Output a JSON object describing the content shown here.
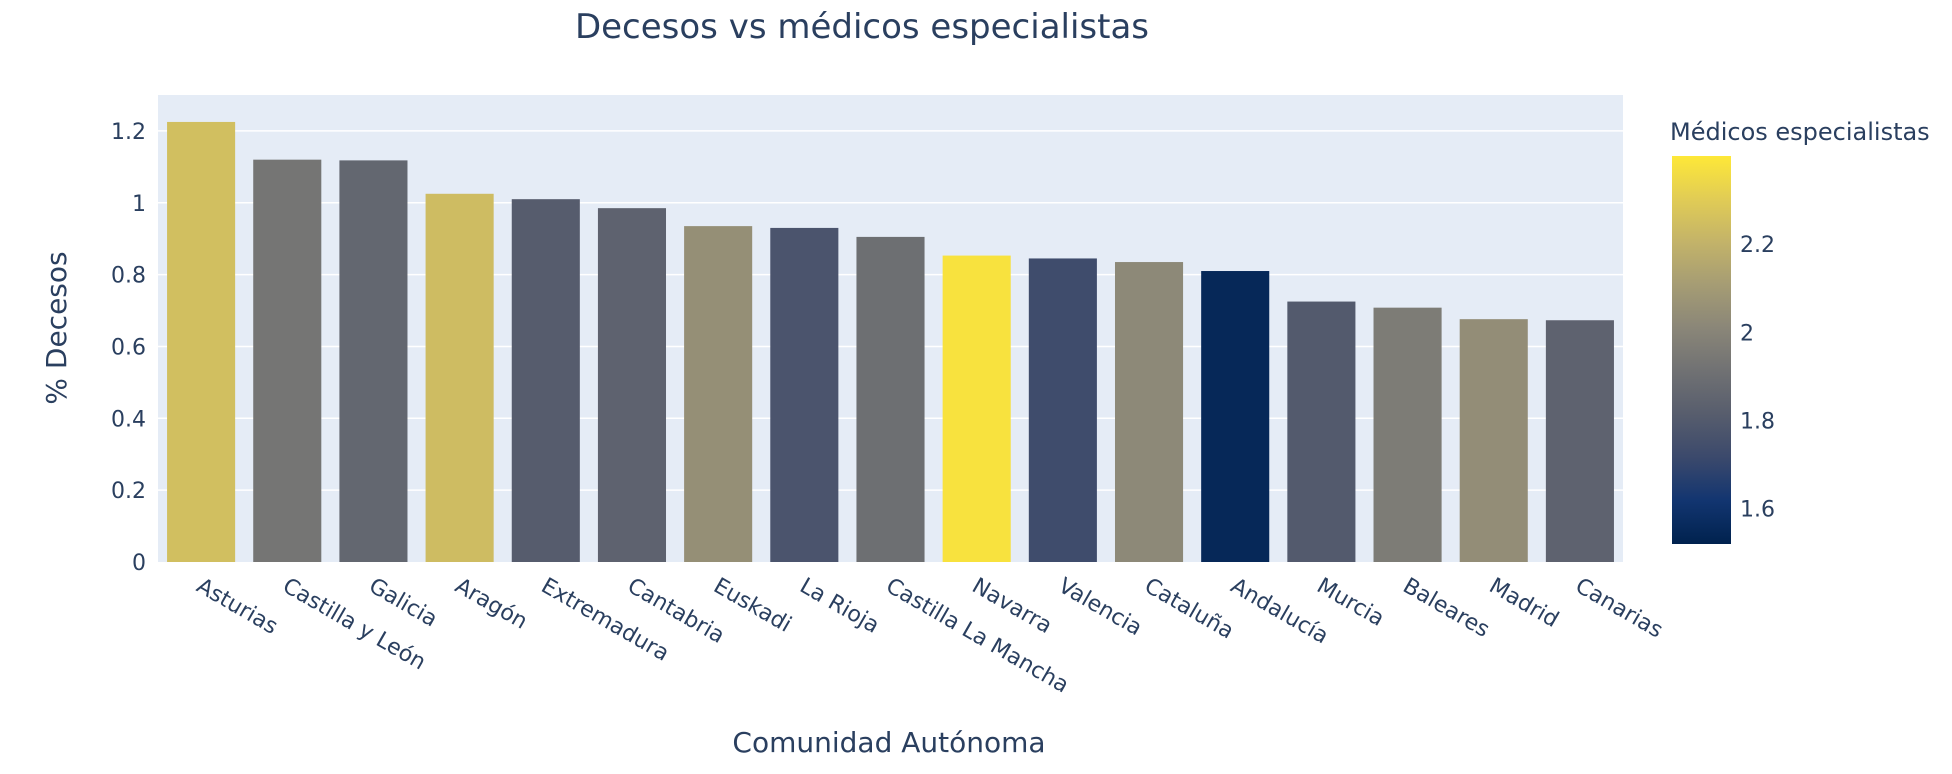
{
  "chart_data": {
    "type": "bar",
    "title": "Decesos vs médicos especialistas",
    "xlabel": "Comunidad Autónoma",
    "ylabel": "% Decesos",
    "ylim": [
      0,
      1.3
    ],
    "yticks": [
      "0",
      "0.2",
      "0.4",
      "0.6",
      "0.8",
      "1",
      "1.2"
    ],
    "grid": true,
    "categories": [
      "Asturias",
      "Castilla y León",
      "Galicia",
      "Aragón",
      "Extremadura",
      "Cantabria",
      "Euskadi",
      "La Rioja",
      "Castilla La Mancha",
      "Navarra",
      "Valencia",
      "Cataluña",
      "Andalucía",
      "Murcia",
      "Baleares",
      "Madrid",
      "Canarias"
    ],
    "values": [
      1.225,
      1.12,
      1.118,
      1.025,
      1.01,
      0.985,
      0.935,
      0.93,
      0.905,
      0.853,
      0.845,
      0.835,
      0.81,
      0.725,
      0.708,
      0.676,
      0.673
    ],
    "color_values": [
      2.25,
      1.93,
      1.86,
      2.24,
      1.81,
      1.84,
      2.05,
      1.77,
      1.9,
      2.38,
      1.73,
      2.02,
      1.55,
      1.8,
      1.96,
      2.04,
      1.84
    ],
    "colorbar": {
      "title": "Médicos especialistas",
      "range": [
        1.52,
        2.4
      ],
      "ticks": [
        "1.6",
        "1.8",
        "2",
        "2.2"
      ],
      "colorscale": "cividis",
      "stops": [
        "#00224e",
        "#123570",
        "#3b496c",
        "#575d6d",
        "#707173",
        "#8a8678",
        "#a59c74",
        "#c3b369",
        "#e1cc55",
        "#fee838"
      ]
    },
    "colors": {
      "plot_bg": "#e5ecf6",
      "grid": "#ffffff",
      "text": "#2a3f5f"
    }
  }
}
